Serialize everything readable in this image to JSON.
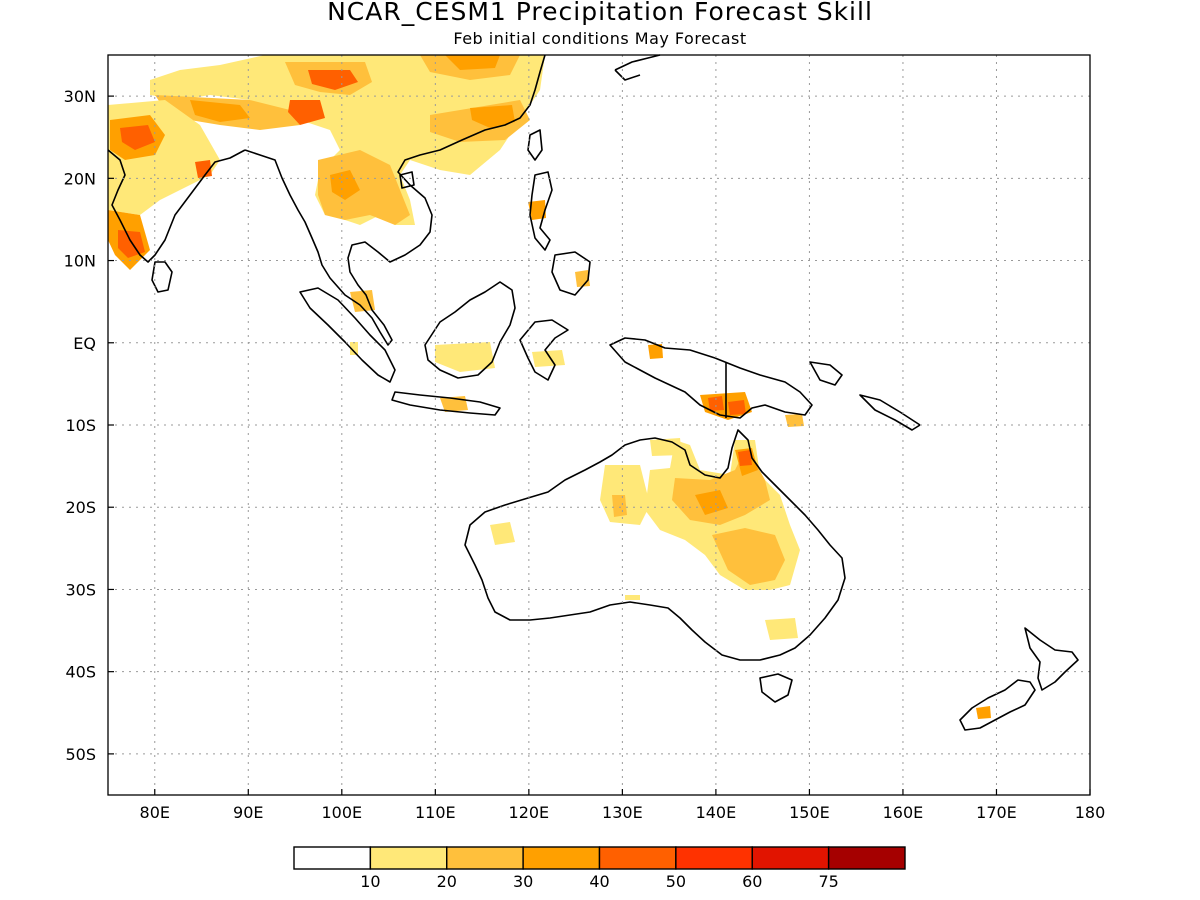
{
  "title": "NCAR_CESM1 Precipitation Forecast Skill",
  "subtitle": "Feb initial conditions  May Forecast",
  "axes": {
    "lon_range": [
      75,
      180
    ],
    "lat_range": [
      -55,
      35
    ],
    "x_ticks": [
      {
        "value": 80,
        "label": "80E"
      },
      {
        "value": 90,
        "label": "90E"
      },
      {
        "value": 100,
        "label": "100E"
      },
      {
        "value": 110,
        "label": "110E"
      },
      {
        "value": 120,
        "label": "120E"
      },
      {
        "value": 130,
        "label": "130E"
      },
      {
        "value": 140,
        "label": "140E"
      },
      {
        "value": 150,
        "label": "150E"
      },
      {
        "value": 160,
        "label": "160E"
      },
      {
        "value": 170,
        "label": "170E"
      },
      {
        "value": 180,
        "label": "180"
      }
    ],
    "y_ticks": [
      {
        "value": 30,
        "label": "30N"
      },
      {
        "value": 20,
        "label": "20N"
      },
      {
        "value": 10,
        "label": "10N"
      },
      {
        "value": 0,
        "label": "EQ"
      },
      {
        "value": -10,
        "label": "10S"
      },
      {
        "value": -20,
        "label": "20S"
      },
      {
        "value": -30,
        "label": "30S"
      },
      {
        "value": -40,
        "label": "40S"
      },
      {
        "value": -50,
        "label": "50S"
      }
    ],
    "grid": true
  },
  "colorbar": {
    "colors": [
      "#ffffff",
      "#ffe878",
      "#ffc03c",
      "#ffa000",
      "#ff6000",
      "#ff3200",
      "#e11400",
      "#a50000"
    ],
    "labels": [
      "10",
      "20",
      "30",
      "40",
      "50",
      "60",
      "75"
    ]
  },
  "colors": {
    "coast": "#000000",
    "grid": "#9a9a9a"
  }
}
